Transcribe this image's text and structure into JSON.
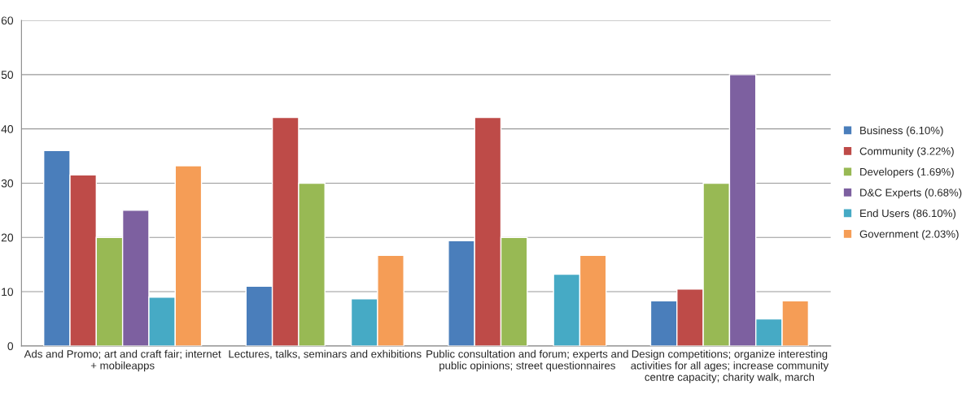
{
  "chart_data": {
    "type": "bar",
    "categories": [
      "Ads and Promo; art and craft fair; internet\n+ mobileapps",
      "Lectures, talks, seminars and exhibitions",
      "Public consultation and forum; experts and\npublic opinions; street questionnaires",
      "Design competitions; organize interesting\nactivities for all ages; increase community\ncentre capacity; charity walk, march"
    ],
    "series": [
      {
        "name": "Business (6.10%)",
        "color": "#4a7ebb",
        "values": [
          36,
          11,
          19.4,
          8.3
        ]
      },
      {
        "name": "Community (3.22%)",
        "color": "#be4b48",
        "values": [
          31.5,
          42.1,
          42.1,
          10.5
        ]
      },
      {
        "name": "Developers (1.69%)",
        "color": "#98b954",
        "values": [
          20,
          30,
          20,
          30
        ]
      },
      {
        "name": "D&C Experts (0.68%)",
        "color": "#7d60a0",
        "values": [
          25,
          null,
          null,
          50
        ]
      },
      {
        "name": "End Users (86.10%)",
        "color": "#46aac5",
        "values": [
          9,
          8.7,
          13.2,
          5
        ]
      },
      {
        "name": "Government (2.03%)",
        "color": "#f59d56",
        "values": [
          33.2,
          16.7,
          16.7,
          8.3
        ]
      }
    ],
    "ylim": [
      0,
      60
    ],
    "yticks": [
      0,
      10,
      20,
      30,
      40,
      50,
      60
    ],
    "grid": "y",
    "legend": "right"
  }
}
